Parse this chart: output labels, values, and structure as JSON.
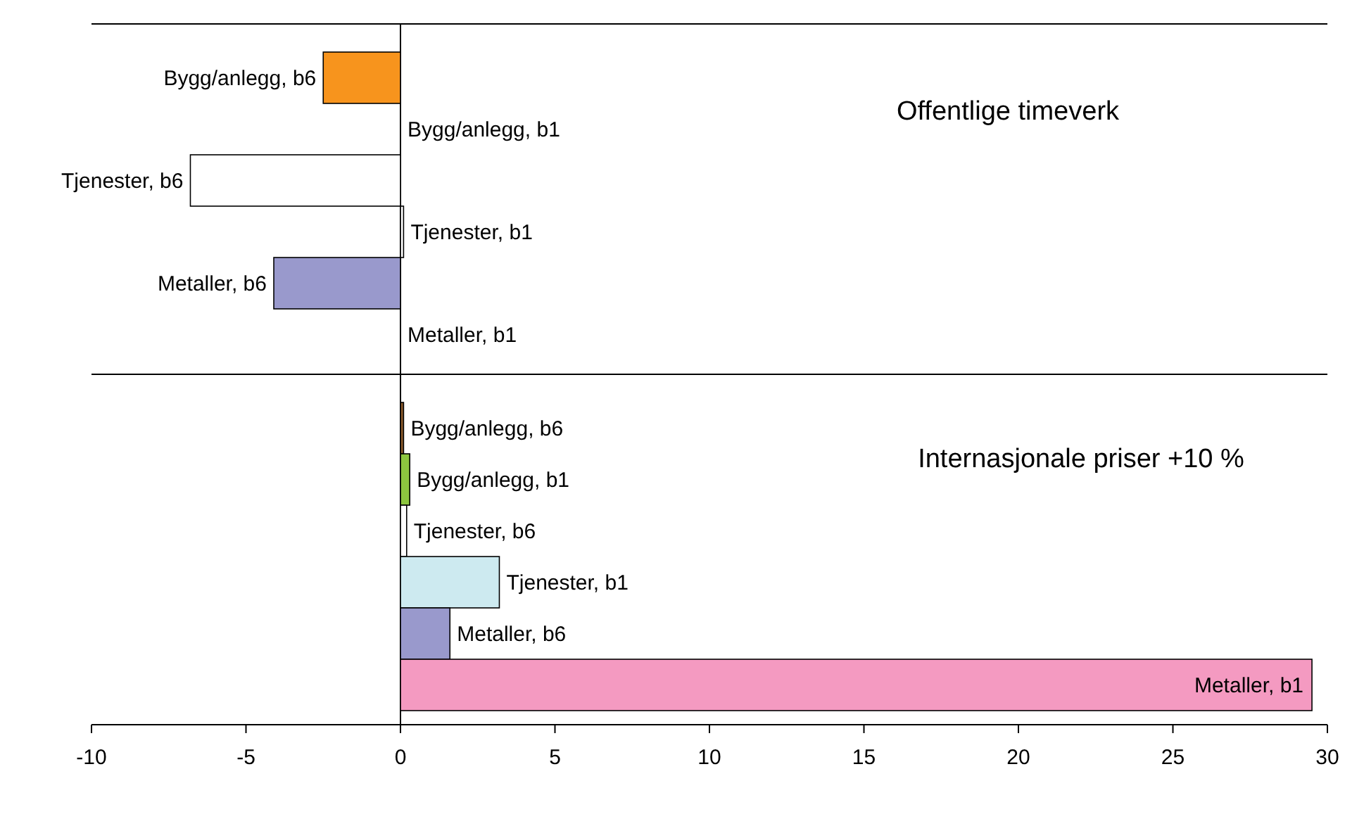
{
  "chart_data": [
    {
      "type": "bar",
      "orientation": "horizontal",
      "title": "Offentlige timeverk",
      "categories": [
        "Bygg/anlegg, b6",
        "Bygg/anlegg, b1",
        "Tjenester, b6",
        "Tjenester, b1",
        "Metaller, b6",
        "Metaller, b1"
      ],
      "values": [
        -2.5,
        0,
        -6.8,
        0.1,
        -4.1,
        0
      ],
      "colors": [
        "#f7941d",
        "#ffffff",
        "#ffffff",
        "#ffffff",
        "#9999cc",
        "#ffffff"
      ],
      "xlim": [
        -10,
        30
      ]
    },
    {
      "type": "bar",
      "orientation": "horizontal",
      "title": "Internasjonale priser +10 %",
      "categories": [
        "Bygg/anlegg, b6",
        "Bygg/anlegg, b1",
        "Tjenester, b6",
        "Tjenester, b1",
        "Metaller, b6",
        "Metaller, b1"
      ],
      "values": [
        0.1,
        0.3,
        0.2,
        3.2,
        1.6,
        29.5
      ],
      "colors": [
        "#8b5a2b",
        "#8dc63f",
        "#ffffff",
        "#cdeaf0",
        "#9999cc",
        "#f49ac1"
      ],
      "xlim": [
        -10,
        30
      ],
      "xticks": [
        -10,
        -5,
        0,
        5,
        10,
        15,
        20,
        25,
        30
      ]
    }
  ]
}
